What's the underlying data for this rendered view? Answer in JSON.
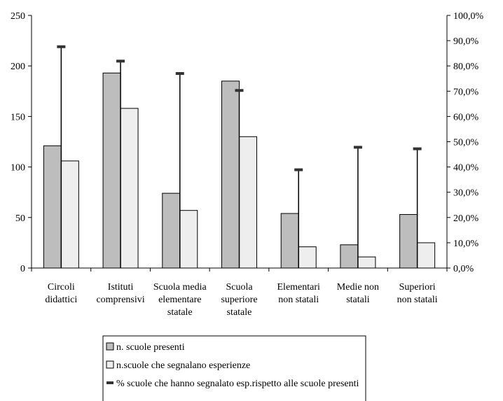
{
  "chart_data": {
    "type": "bar",
    "categories": [
      [
        "Circoli",
        "didattici"
      ],
      [
        "Istituti",
        "comprensivi"
      ],
      [
        "Scuola media",
        "elementare",
        "statale"
      ],
      [
        "Scuola",
        "superiore",
        "statale"
      ],
      [
        "Elementari",
        "non statali"
      ],
      [
        "Medie non",
        "statali"
      ],
      [
        "Superiori",
        "non statali"
      ]
    ],
    "series": [
      {
        "name": "n. scuole presenti",
        "values": [
          121,
          193,
          74,
          185,
          54,
          23,
          53
        ],
        "color": "#bdbdbd"
      },
      {
        "name": "n.scuole che segnalano esperienze",
        "values": [
          106,
          158,
          57,
          130,
          21,
          11,
          25
        ],
        "color": "#eeeeee"
      },
      {
        "name": "% scuole che hanno segnalato esp.rispetto alle scuole presenti",
        "values": [
          87.6,
          81.9,
          77.0,
          70.3,
          38.9,
          47.8,
          47.2
        ],
        "axis": "right",
        "color": "#333333"
      }
    ],
    "ylim": [
      0,
      250
    ],
    "yticks": [
      "0",
      "50",
      "100",
      "150",
      "200",
      "250"
    ],
    "y2lim": [
      0,
      100
    ],
    "y2ticks": [
      "0,0%",
      "10,0%",
      "20,0%",
      "30,0%",
      "40,0%",
      "50,0%",
      "60,0%",
      "70,0%",
      "80,0%",
      "90,0%",
      "100,0%"
    ],
    "legend_position": "bottom",
    "grid": false
  }
}
